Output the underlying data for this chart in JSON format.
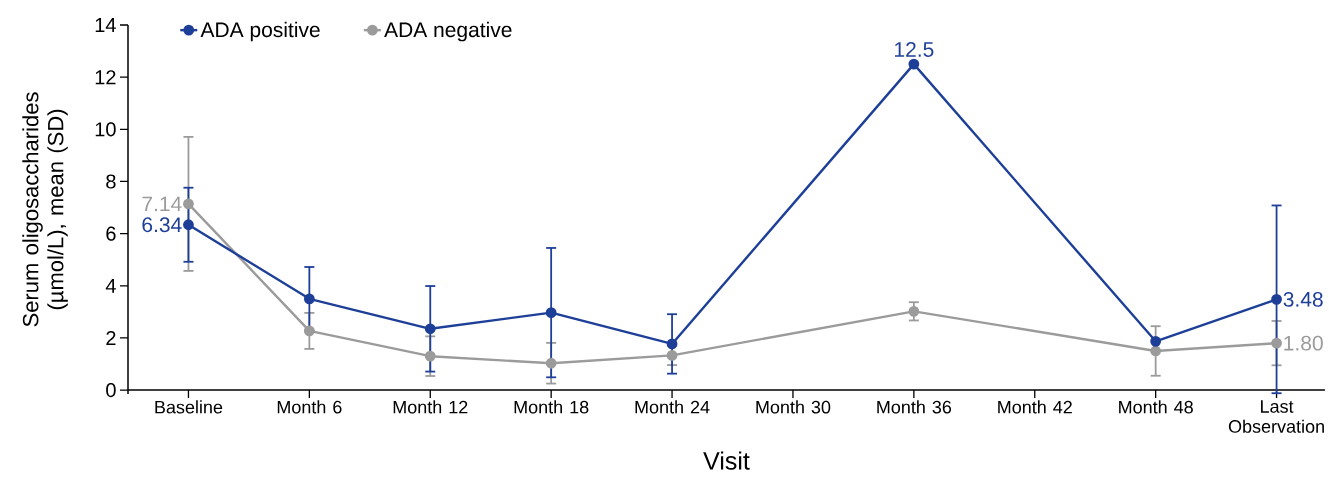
{
  "chart_data": {
    "type": "line",
    "categories": [
      "Baseline",
      "Month 6",
      "Month 12",
      "Month 18",
      "Month 24",
      "Month 30",
      "Month 36",
      "Month 42",
      "Month 48",
      "Last Observation"
    ],
    "series": [
      {
        "name": "ADA positive",
        "color": "#1d3f98",
        "values": [
          6.34,
          3.5,
          2.35,
          2.97,
          1.77,
          null,
          12.5,
          null,
          1.87,
          3.48
        ],
        "errors": [
          1.42,
          1.22,
          1.64,
          2.48,
          1.14,
          null,
          null,
          null,
          null,
          3.6
        ],
        "value_labels": [
          "6.34",
          null,
          null,
          null,
          null,
          null,
          "12.5",
          null,
          null,
          "3.48"
        ]
      },
      {
        "name": "ADA negative",
        "color": "#9b9b9b",
        "values": [
          7.14,
          2.27,
          1.3,
          1.03,
          1.33,
          null,
          3.02,
          null,
          1.5,
          1.8
        ],
        "errors": [
          2.57,
          0.69,
          0.76,
          0.78,
          0.37,
          null,
          0.35,
          null,
          0.95,
          0.85
        ],
        "value_labels": [
          "7.14",
          null,
          null,
          null,
          null,
          null,
          null,
          null,
          null,
          "1.80"
        ]
      }
    ],
    "xlabel": "Visit",
    "ylabel": "Serum oligosaccharides (µmol/L), mean (SD)",
    "ylim": [
      -0.15,
      14
    ],
    "yticks": [
      0,
      2,
      4,
      6,
      8,
      10,
      12,
      14
    ],
    "legend": "top left",
    "marker": "circle",
    "line_style": "solid"
  }
}
